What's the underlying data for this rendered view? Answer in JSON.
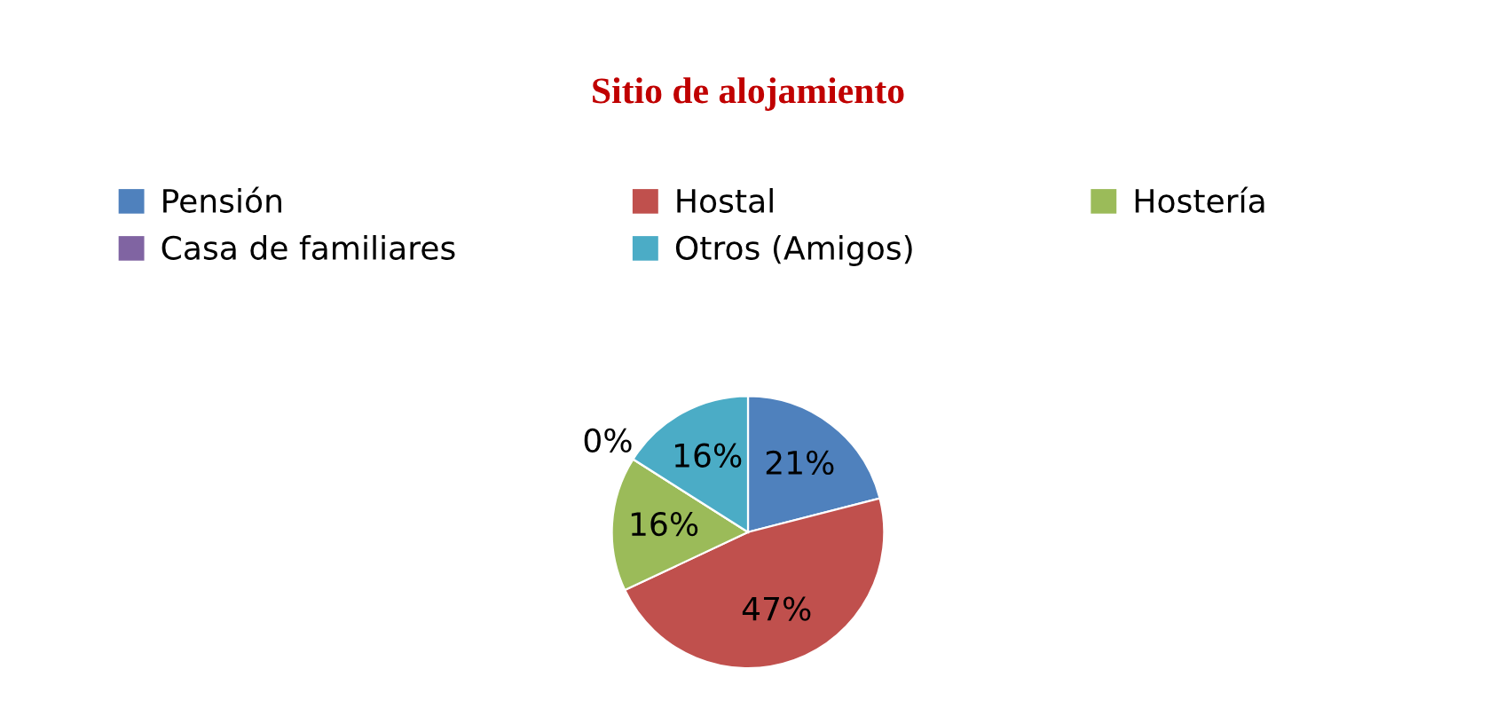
{
  "chart_data": {
    "type": "pie",
    "title": "Sitio de alojamiento",
    "categories": [
      "Pensión",
      "Hostal",
      "Hostería",
      "Casa de familiares",
      "Otros (Amigos)"
    ],
    "values": [
      21,
      47,
      16,
      0,
      16
    ],
    "colors": [
      "#4f81bd",
      "#c0504d",
      "#9bbb59",
      "#8064a2",
      "#4bacc6"
    ],
    "value_labels": [
      "21%",
      "47%",
      "16%",
      "0%",
      "16%"
    ],
    "legend": "top"
  }
}
